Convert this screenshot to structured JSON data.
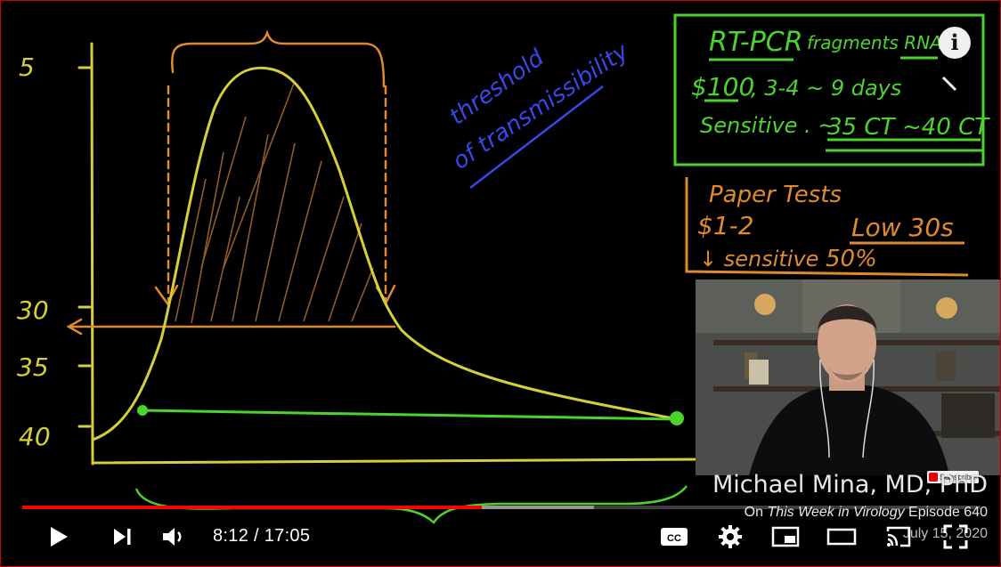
{
  "colors": {
    "yellow": "#d6cf3a",
    "orange": "#e08a2e",
    "green": "#4cd42e",
    "blue": "#3848e8",
    "progress_played": "#ff0000"
  },
  "graph": {
    "y_labels": [
      "5",
      "30",
      "35",
      "40"
    ],
    "threshold_label_line1": "threshold",
    "threshold_label_line2": "of transmissibility"
  },
  "rtpcr_box": {
    "title": "RT-PCR",
    "title_rest": "fragments RNA",
    "line2a": "$100",
    "line2b": ", 3-4 ~ 9 days",
    "line3a": "Sensitive . ~",
    "line3b": "35 CT",
    "line3c": "~40 CT"
  },
  "paper_box": {
    "title": "Paper Tests",
    "price": "$1-2",
    "ct": "Low 30s",
    "sensitive": "↓ sensitive",
    "percent": "50%"
  },
  "overlay": {
    "name": "Michael Mina, MD, PhD",
    "show_prefix": "On ",
    "show_title": "This Week in Virology",
    "episode": " Episode 640",
    "date": "July 15, 2020",
    "subscribe": "Subscribe"
  },
  "player": {
    "info_icon": "i",
    "current_time": "8:12",
    "duration": "17:05",
    "time_separator": " / ",
    "played_fraction": 0.48,
    "buffered_fraction": 0.597,
    "icons": [
      "play-icon",
      "next-icon",
      "volume-icon",
      "cc-icon",
      "settings-icon",
      "miniplayer-icon",
      "theater-icon",
      "cast-icon",
      "fullscreen-icon"
    ],
    "cc_label": "CC"
  }
}
